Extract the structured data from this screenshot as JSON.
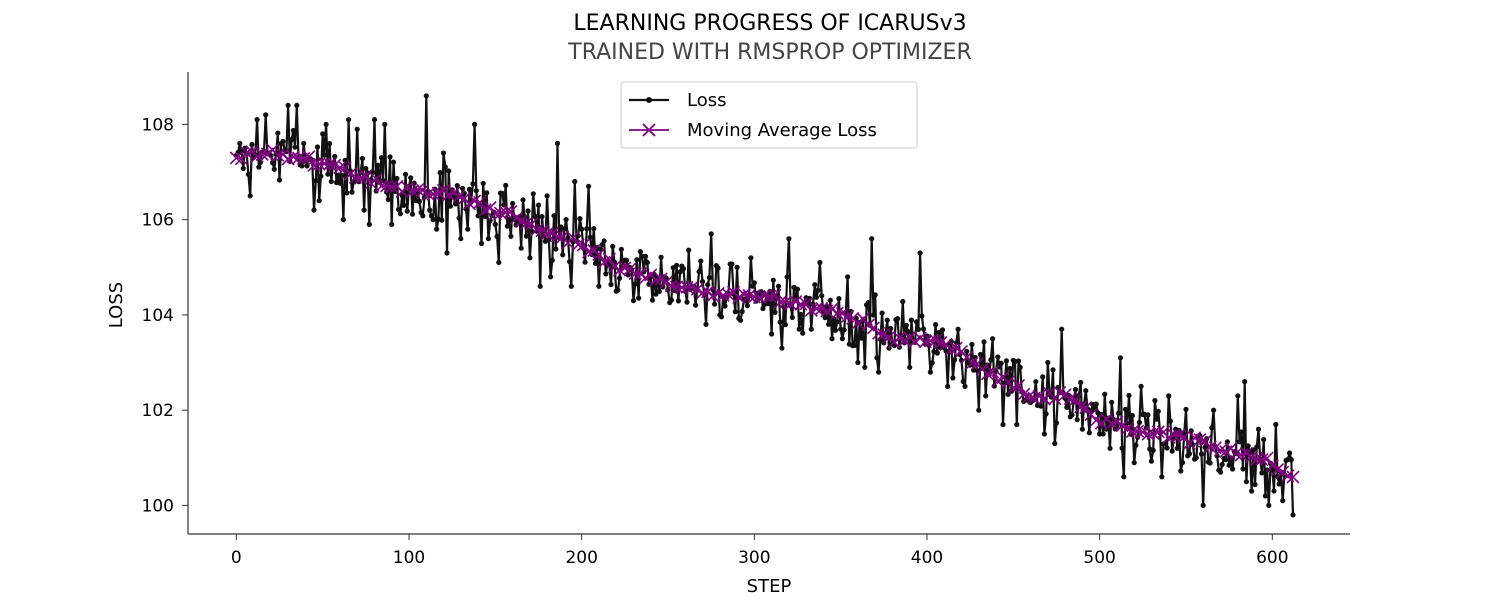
{
  "chart_data": {
    "type": "line",
    "title": "LEARNING PROGRESS OF ICARUSv3",
    "subtitle": "TRAINED WITH RMSPROP OPTIMIZER",
    "xlabel": "STEP",
    "ylabel": "LOSS",
    "xlim": [
      -28,
      645
    ],
    "ylim": [
      99.4,
      109.1
    ],
    "xticks": [
      0,
      100,
      200,
      300,
      400,
      500,
      600
    ],
    "yticks": [
      100,
      102,
      104,
      106,
      108
    ],
    "grid": false,
    "legend_position": "top-center",
    "series": [
      {
        "name": "Loss",
        "color": "#111111",
        "marker": "dot",
        "trend": [
          [
            0,
            107.3
          ],
          [
            30,
            107.3
          ],
          [
            60,
            107.0
          ],
          [
            100,
            106.6
          ],
          [
            130,
            106.5
          ],
          [
            160,
            106.1
          ],
          [
            200,
            105.5
          ],
          [
            240,
            104.8
          ],
          [
            300,
            104.4
          ],
          [
            350,
            104.0
          ],
          [
            400,
            103.5
          ],
          [
            450,
            102.6
          ],
          [
            500,
            101.8
          ],
          [
            550,
            101.4
          ],
          [
            612,
            100.6
          ]
        ],
        "amplitude": 0.75,
        "spikes": [
          [
            2,
            107.6
          ],
          [
            5,
            107.5
          ],
          [
            8,
            106.5
          ],
          [
            12,
            108.1
          ],
          [
            17,
            108.2
          ],
          [
            30,
            108.4
          ],
          [
            35,
            108.4
          ],
          [
            39,
            107.6
          ],
          [
            45,
            106.2
          ],
          [
            48,
            106.4
          ],
          [
            50,
            107.8
          ],
          [
            52,
            108.0
          ],
          [
            55,
            106.8
          ],
          [
            62,
            106.0
          ],
          [
            65,
            108.1
          ],
          [
            70,
            107.9
          ],
          [
            74,
            106.2
          ],
          [
            77,
            105.9
          ],
          [
            80,
            108.1
          ],
          [
            84,
            107.3
          ],
          [
            86,
            108.0
          ],
          [
            90,
            105.9
          ],
          [
            97,
            106.3
          ],
          [
            100,
            106.7
          ],
          [
            104,
            106.4
          ],
          [
            110,
            108.6
          ],
          [
            112,
            106.2
          ],
          [
            114,
            106.0
          ],
          [
            116,
            105.8
          ],
          [
            120,
            107.4
          ],
          [
            122,
            105.3
          ],
          [
            130,
            105.6
          ],
          [
            134,
            105.8
          ],
          [
            138,
            108.0
          ],
          [
            142,
            105.5
          ],
          [
            146,
            105.6
          ],
          [
            150,
            105.9
          ],
          [
            152,
            105.1
          ],
          [
            158,
            106.0
          ],
          [
            165,
            105.4
          ],
          [
            170,
            105.2
          ],
          [
            176,
            104.6
          ],
          [
            180,
            106.5
          ],
          [
            182,
            104.8
          ],
          [
            186,
            107.6
          ],
          [
            190,
            105.8
          ],
          [
            194,
            104.6
          ],
          [
            196,
            106.8
          ],
          [
            200,
            105.8
          ],
          [
            204,
            106.7
          ],
          [
            210,
            104.6
          ],
          [
            220,
            104.5
          ],
          [
            230,
            104.3
          ],
          [
            238,
            105.1
          ],
          [
            248,
            104.8
          ],
          [
            260,
            104.5
          ],
          [
            265,
            104.6
          ],
          [
            270,
            104.7
          ],
          [
            272,
            103.8
          ],
          [
            275,
            105.7
          ],
          [
            280,
            104.0
          ],
          [
            290,
            105.0
          ],
          [
            295,
            104.3
          ],
          [
            298,
            105.2
          ],
          [
            310,
            103.6
          ],
          [
            316,
            103.3
          ],
          [
            320,
            105.6
          ],
          [
            326,
            103.7
          ],
          [
            333,
            103.7
          ],
          [
            338,
            105.1
          ],
          [
            345,
            103.5
          ],
          [
            350,
            103.7
          ],
          [
            354,
            104.8
          ],
          [
            360,
            103.0
          ],
          [
            364,
            102.9
          ],
          [
            368,
            105.6
          ],
          [
            372,
            102.8
          ],
          [
            378,
            103.3
          ],
          [
            382,
            103.9
          ],
          [
            390,
            102.9
          ],
          [
            396,
            105.3
          ],
          [
            402,
            102.8
          ],
          [
            406,
            103.2
          ],
          [
            412,
            102.5
          ],
          [
            418,
            103.7
          ],
          [
            422,
            102.5
          ],
          [
            430,
            102.0
          ],
          [
            434,
            102.3
          ],
          [
            438,
            103.5
          ],
          [
            444,
            101.7
          ],
          [
            452,
            101.7
          ],
          [
            458,
            102.3
          ],
          [
            464,
            102.1
          ],
          [
            468,
            101.5
          ],
          [
            470,
            103.0
          ],
          [
            474,
            101.3
          ],
          [
            478,
            103.7
          ],
          [
            484,
            101.9
          ],
          [
            490,
            101.6
          ],
          [
            500,
            101.5
          ],
          [
            506,
            101.2
          ],
          [
            512,
            103.1
          ],
          [
            514,
            100.6
          ],
          [
            520,
            100.9
          ],
          [
            524,
            102.5
          ],
          [
            528,
            101.9
          ],
          [
            532,
            102.2
          ],
          [
            536,
            100.6
          ],
          [
            540,
            102.3
          ],
          [
            544,
            101.6
          ],
          [
            548,
            100.9
          ],
          [
            556,
            101.0
          ],
          [
            560,
            100.0
          ],
          [
            562,
            101.4
          ],
          [
            566,
            102.0
          ],
          [
            570,
            100.7
          ],
          [
            576,
            101.0
          ],
          [
            580,
            102.3
          ],
          [
            584,
            102.6
          ],
          [
            588,
            100.3
          ],
          [
            592,
            101.6
          ],
          [
            596,
            100.2
          ],
          [
            598,
            100.0
          ],
          [
            602,
            101.7
          ],
          [
            606,
            100.1
          ],
          [
            610,
            101.1
          ],
          [
            612,
            99.8
          ]
        ]
      },
      {
        "name": "Moving Average Loss",
        "color": "#800080",
        "marker": "x",
        "trend": [
          [
            0,
            107.3
          ],
          [
            20,
            107.4
          ],
          [
            40,
            107.3
          ],
          [
            50,
            107.1
          ],
          [
            60,
            107.1
          ],
          [
            80,
            106.8
          ],
          [
            100,
            106.6
          ],
          [
            120,
            106.6
          ],
          [
            140,
            106.3
          ],
          [
            160,
            106.1
          ],
          [
            180,
            105.7
          ],
          [
            200,
            105.5
          ],
          [
            220,
            105.0
          ],
          [
            240,
            104.8
          ],
          [
            260,
            104.6
          ],
          [
            280,
            104.4
          ],
          [
            300,
            104.4
          ],
          [
            320,
            104.3
          ],
          [
            340,
            104.1
          ],
          [
            360,
            103.9
          ],
          [
            380,
            103.5
          ],
          [
            400,
            103.5
          ],
          [
            420,
            103.2
          ],
          [
            440,
            102.7
          ],
          [
            460,
            102.3
          ],
          [
            480,
            102.3
          ],
          [
            500,
            101.8
          ],
          [
            520,
            101.6
          ],
          [
            540,
            101.5
          ],
          [
            560,
            101.3
          ],
          [
            580,
            101.1
          ],
          [
            600,
            100.9
          ],
          [
            612,
            100.6
          ]
        ],
        "amplitude": 0.08
      }
    ]
  }
}
